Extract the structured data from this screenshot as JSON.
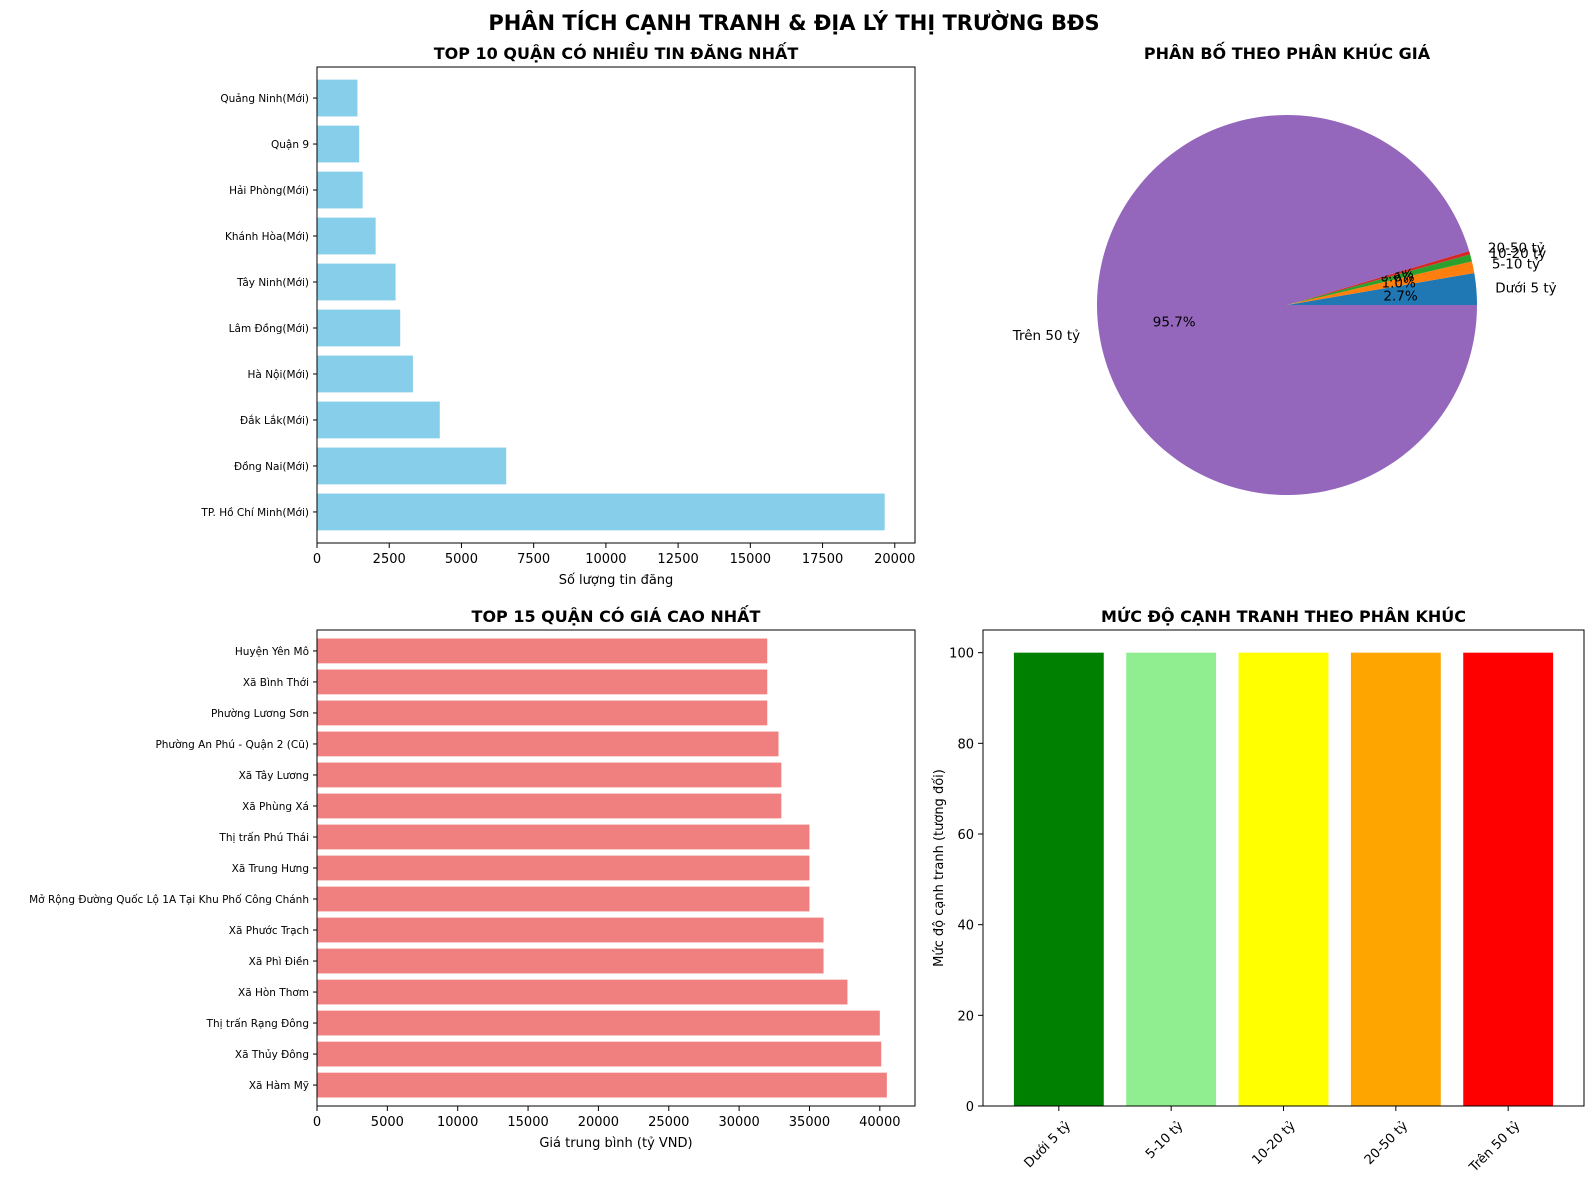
{
  "title": "PHÂN TÍCH CẠNH TRANH & ĐỊA LÝ THỊ TRƯỜNG BĐS",
  "chart_data": [
    {
      "type": "bar",
      "orientation": "horizontal",
      "title": "TOP 10 QUẬN CÓ NHIỀU TIN ĐĂNG NHẤT",
      "xlabel": "Số lượng tin đăng",
      "ylabel": "",
      "xlim": [
        0,
        20700
      ],
      "xticks": [
        0,
        2500,
        5000,
        7500,
        10000,
        12500,
        15000,
        17500,
        20000
      ],
      "color": "#87ceeb",
      "categories": [
        "TP. Hồ Chí Minh(Mới)",
        "Đồng Nai(Mới)",
        "Đắk Lắk(Mới)",
        "Hà Nội(Mới)",
        "Lâm Đồng(Mới)",
        "Tây Ninh(Mới)",
        "Khánh Hòa(Mới)",
        "Hải Phòng(Mới)",
        "Quận 9",
        "Quảng Ninh(Mới)"
      ],
      "values": [
        19650,
        6550,
        4250,
        3320,
        2880,
        2720,
        2030,
        1580,
        1460,
        1400
      ]
    },
    {
      "type": "pie",
      "title": "PHÂN BỐ THEO PHÂN KHÚC GIÁ",
      "labels": [
        "Dưới 5 tỷ",
        "5-10 tỷ",
        "10-20 tỷ",
        "20-50 tỷ",
        "Trên 50 tỷ"
      ],
      "values": [
        2.7,
        1.0,
        0.6,
        0.3,
        95.7
      ],
      "pct_labels": [
        "2.7%",
        "1.0%",
        "0.6%",
        "0.3%",
        "95.7%"
      ],
      "colors": [
        "#1f77b4",
        "#ff7f0e",
        "#2ca02c",
        "#d62728",
        "#9467bd"
      ]
    },
    {
      "type": "bar",
      "orientation": "horizontal",
      "title": "TOP 15 QUẬN CÓ GIÁ CAO NHẤT",
      "xlabel": "Giá trung bình (tỷ VND)",
      "ylabel": "",
      "xlim": [
        0,
        42500
      ],
      "xticks": [
        0,
        5000,
        10000,
        15000,
        20000,
        25000,
        30000,
        35000,
        40000
      ],
      "color": "#f08080",
      "categories": [
        "Xã Hàm Mỹ",
        "Xã Thủy Đông",
        "Thị trấn Rạng Đông",
        "Xã Hòn Thơm",
        "Xã Phì Điền",
        "Xã Phước Trạch",
        "Mở Rộng Đường Quốc Lộ 1A Tại Khu Phố Công Chánh",
        "Xã Trung Hưng",
        "Thị trấn Phú Thái",
        "Xã Phùng Xá",
        "Xã Tây Lương",
        "Phường An Phú - Quận 2 (Cũ)",
        "Phường Lương Sơn",
        "Xã Bình Thới",
        "Huyện Yên Mô"
      ],
      "values": [
        40500,
        40100,
        40000,
        37700,
        36000,
        36000,
        35000,
        35000,
        35000,
        33000,
        33000,
        32800,
        32000,
        32000,
        32000
      ]
    },
    {
      "type": "bar",
      "orientation": "vertical",
      "title": "MỨC ĐỘ CẠNH TRANH THEO PHÂN KHÚC",
      "xlabel": "",
      "ylabel": "Mức độ cạnh tranh (tương đối)",
      "ylim": [
        0,
        105
      ],
      "yticks": [
        0,
        20,
        40,
        60,
        80,
        100
      ],
      "categories": [
        "Dưới 5 tỷ",
        "5-10 tỷ",
        "10-20 tỷ",
        "20-50 tỷ",
        "Trên 50 tỷ"
      ],
      "values": [
        100,
        100,
        100,
        100,
        100
      ],
      "colors": [
        "#008000",
        "#90ee90",
        "#ffff00",
        "#ffa500",
        "#ff0000"
      ]
    }
  ]
}
